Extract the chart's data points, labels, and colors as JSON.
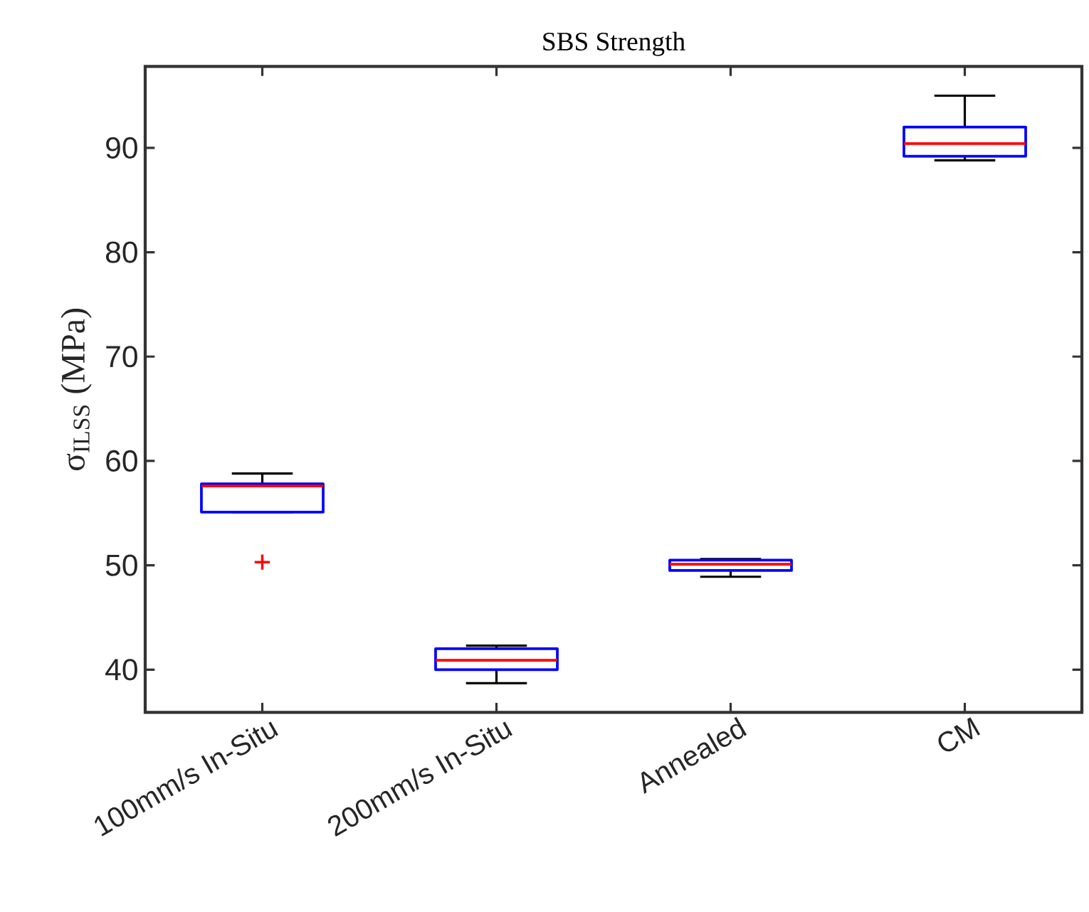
{
  "chart_data": {
    "type": "box",
    "title": "SBS Strength",
    "ylabel": "σ$_{ILSS}$ (MPa)",
    "categories": [
      "100mm/s In-Situ",
      "200mm/s In-Situ",
      "Annealed",
      "CM"
    ],
    "series": [
      {
        "color": "#0000ff",
        "boxes": [
          {
            "low": 55.1,
            "q1": 55.1,
            "median": 57.6,
            "q3": 57.8,
            "high": 58.8,
            "outliers": [
              50.3
            ]
          },
          {
            "low": 38.7,
            "q1": 40.0,
            "median": 40.9,
            "q3": 42.0,
            "high": 42.3
          },
          {
            "low": 48.9,
            "q1": 49.5,
            "median": 50.1,
            "q3": 50.5,
            "high": 50.6
          },
          {
            "low": 88.8,
            "q1": 89.2,
            "median": 90.4,
            "q3": 92.0,
            "high": 95.0
          }
        ]
      }
    ],
    "ylim": [
      35.9,
      97.8
    ],
    "yticks": [
      40,
      50,
      60,
      70,
      80,
      90
    ],
    "grid": false
  }
}
